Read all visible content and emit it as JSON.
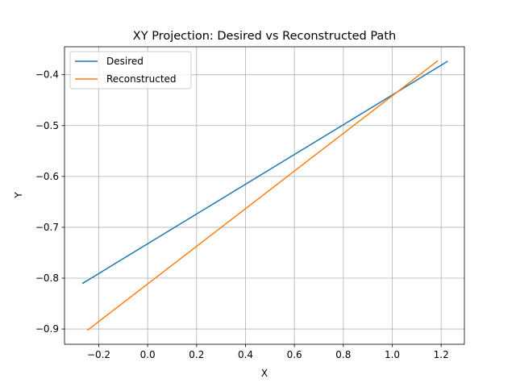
{
  "chart_data": {
    "type": "line",
    "title": "XY Projection: Desired vs Reconstructed Path",
    "xlabel": "X",
    "ylabel": "Y",
    "xlim": [
      -0.34,
      1.295
    ],
    "ylim": [
      -0.93,
      -0.345
    ],
    "x_ticks": [
      -0.2,
      0.0,
      0.2,
      0.4,
      0.6,
      0.8,
      1.0,
      1.2
    ],
    "x_tick_labels": [
      "−0.2",
      "0.0",
      "0.2",
      "0.4",
      "0.6",
      "0.8",
      "1.0",
      "1.2"
    ],
    "y_ticks": [
      -0.9,
      -0.8,
      -0.7,
      -0.6,
      -0.5,
      -0.4
    ],
    "y_tick_labels": [
      "−0.9",
      "−0.8",
      "−0.7",
      "−0.6",
      "−0.5",
      "−0.4"
    ],
    "grid": true,
    "legend_position": "top-left",
    "series": [
      {
        "name": "Desired",
        "color": "#1f77b4",
        "x": [
          -0.265,
          1.225
        ],
        "y": [
          -0.81,
          -0.374
        ]
      },
      {
        "name": "Reconstructed",
        "color": "#ff7f0e",
        "x": [
          -0.245,
          1.185
        ],
        "y": [
          -0.902,
          -0.373
        ]
      }
    ]
  }
}
